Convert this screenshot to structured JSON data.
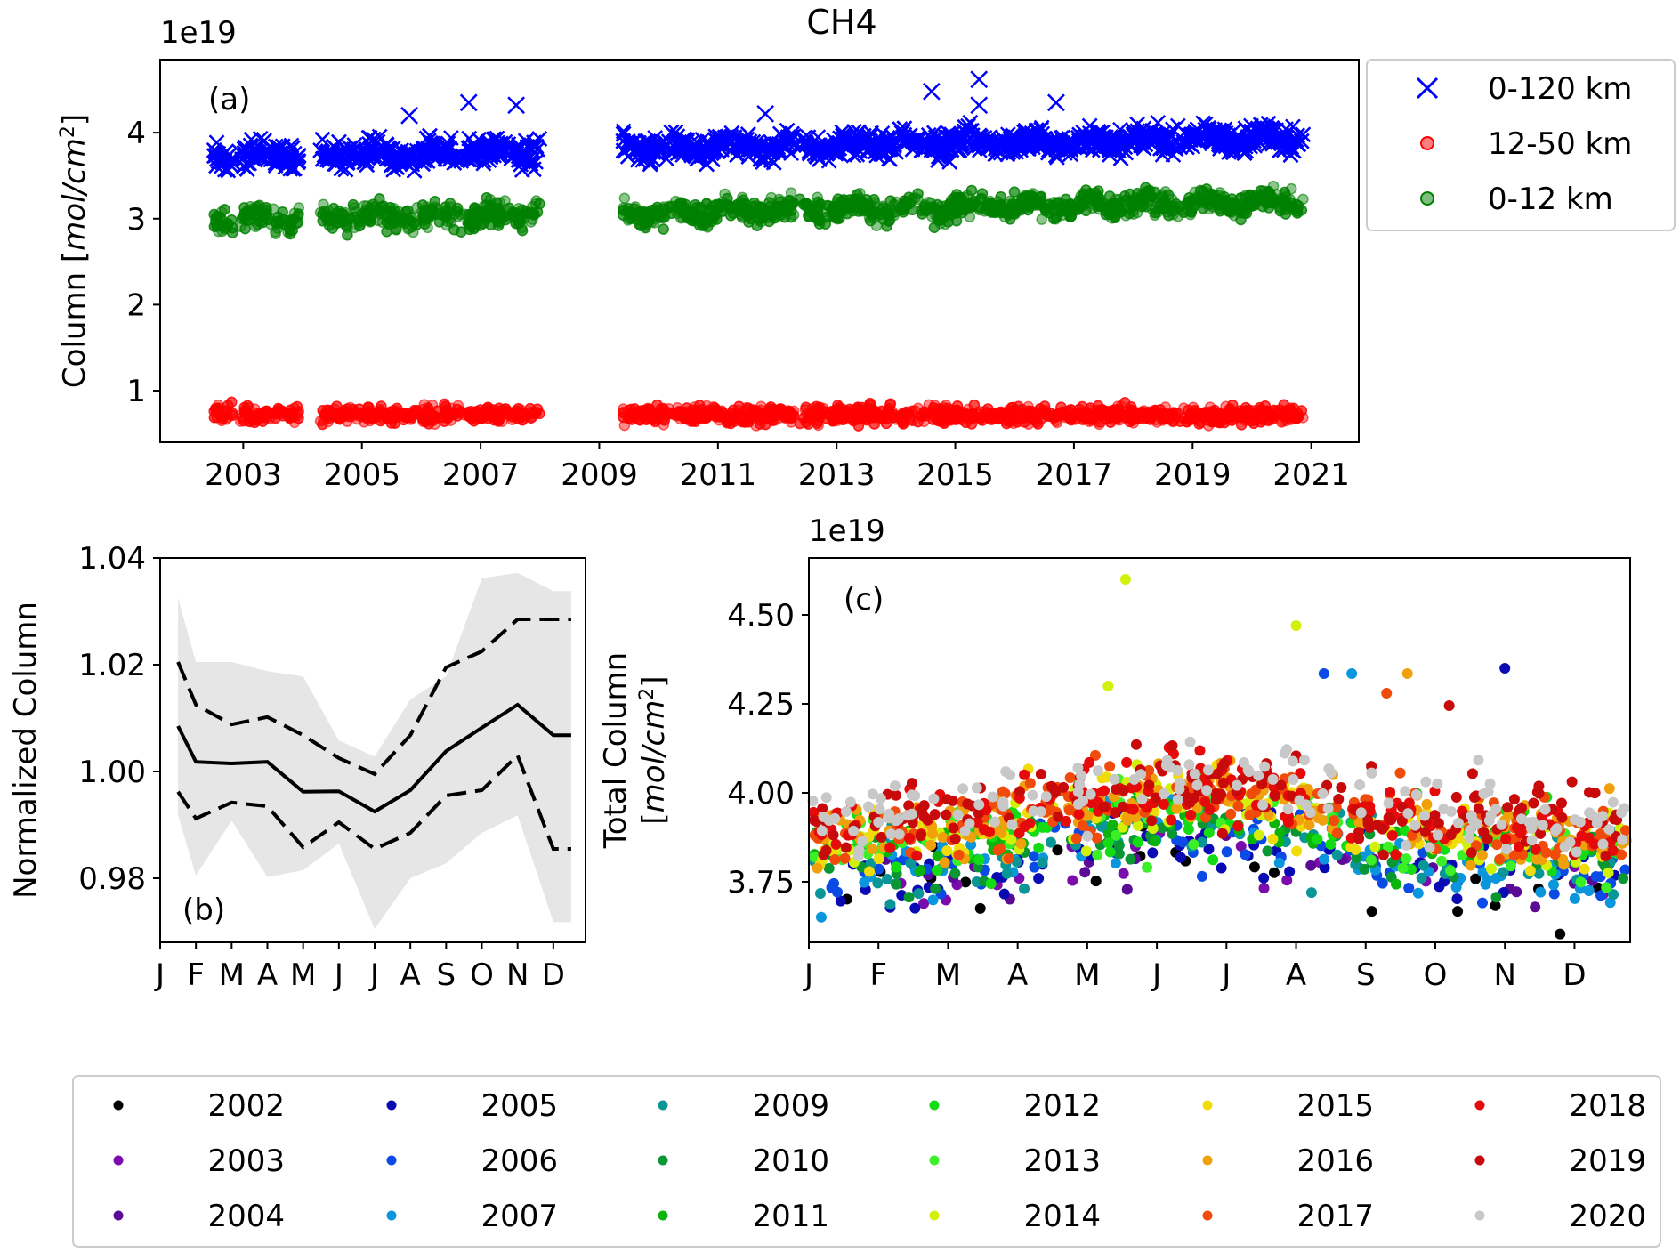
{
  "title": "CH4",
  "colors": {
    "total": "#0000ff",
    "strat": "#ff0000",
    "trop": "#008000",
    "band": "#e6e6e6",
    "line": "#000000",
    "legend_border": "#cccccc"
  },
  "panel_a": {
    "label": "(a)",
    "ylabel": "Column [mol/cm²]",
    "ylabel_main": "Column [",
    "ylabel_unit": "mol/cm",
    "ylabel_sup": "2",
    "ylabel_end": "]",
    "offset": "1e19",
    "xlim": [
      2001.6,
      2021.8
    ],
    "ylim": [
      0.4,
      4.85
    ],
    "xticks": [
      2003,
      2005,
      2007,
      2009,
      2011,
      2013,
      2015,
      2017,
      2019,
      2021
    ],
    "xtick_labels": [
      "2003",
      "2005",
      "2007",
      "2009",
      "2011",
      "2013",
      "2015",
      "2017",
      "2019",
      "2021"
    ],
    "yticks": [
      1,
      2,
      3,
      4
    ],
    "ytick_labels": [
      "1",
      "2",
      "3",
      "4"
    ],
    "data_gap": [
      2008.0,
      2009.4
    ],
    "data_range": [
      2002.5,
      2020.95
    ],
    "series_levels": {
      "0-120 km": 3.8,
      "12-50 km": 0.72,
      "0-12 km": 3.1
    },
    "legend": [
      {
        "label": "0-120 km",
        "marker": "x",
        "color": "#0000ff"
      },
      {
        "label": "12-50 km",
        "marker": "o",
        "color": "#ff0000"
      },
      {
        "label": "0-12 km",
        "marker": "o",
        "color": "#008000"
      }
    ]
  },
  "panel_b": {
    "label": "(b)",
    "ylabel": "Normalized Column",
    "xlim": [
      0,
      11.9
    ],
    "ylim": [
      0.968,
      1.04
    ],
    "yticks": [
      0.98,
      1.0,
      1.02,
      1.04
    ],
    "ytick_labels": [
      "0.98",
      "1.00",
      "1.02",
      "1.04"
    ],
    "xtick_labels": [
      "J",
      "F",
      "M",
      "A",
      "M",
      "J",
      "J",
      "A",
      "S",
      "O",
      "N",
      "D"
    ],
    "x": [
      0.5,
      1.0,
      2.0,
      3.0,
      4.0,
      5.0,
      6.0,
      7.0,
      8.0,
      9.0,
      10.0,
      11.0,
      11.5
    ],
    "mean": [
      1.0085,
      1.0018,
      1.0015,
      1.0018,
      0.9962,
      0.9963,
      0.9925,
      0.9965,
      1.0038,
      1.0082,
      1.0125,
      1.0068,
      1.0068
    ],
    "upper": [
      1.0205,
      1.0125,
      1.0088,
      1.0102,
      1.0068,
      1.0025,
      0.9995,
      1.0068,
      1.0195,
      1.0225,
      1.0285,
      1.0285,
      1.0285
    ],
    "lower": [
      0.9962,
      0.9912,
      0.9942,
      0.9935,
      0.9858,
      0.9905,
      0.9855,
      0.9885,
      0.9955,
      0.9965,
      1.003,
      0.9855,
      0.9855
    ],
    "band_upper": [
      1.0325,
      1.0205,
      1.0205,
      1.0188,
      1.0178,
      1.0058,
      1.0028,
      1.0135,
      1.0178,
      1.0362,
      1.0372,
      1.0338,
      1.0338
    ],
    "band_lower": [
      0.9918,
      0.9805,
      0.9908,
      0.9802,
      0.9815,
      0.9865,
      0.9705,
      0.98,
      0.9828,
      0.9885,
      0.9918,
      0.9718,
      0.9718
    ]
  },
  "panel_c": {
    "label": "(c)",
    "ylabel_line1": "Total Column",
    "ylabel_line2_open": "[",
    "ylabel_line2_unit": "mol/cm",
    "ylabel_line2_sup": "2",
    "ylabel_line2_close": "]",
    "offset": "1e19",
    "xlim": [
      0,
      11.8
    ],
    "ylim": [
      3.58,
      4.66
    ],
    "yticks": [
      3.75,
      4.0,
      4.25,
      4.5
    ],
    "ytick_labels": [
      "3.75",
      "4.00",
      "4.25",
      "4.50"
    ],
    "xtick_labels": [
      "J",
      "F",
      "M",
      "A",
      "M",
      "J",
      "J",
      "A",
      "S",
      "O",
      "N",
      "D"
    ],
    "outliers": [
      {
        "year": "2014",
        "month": 4.55,
        "value": 4.6
      },
      {
        "year": "2014",
        "month": 7.0,
        "value": 4.47
      },
      {
        "year": "2014",
        "month": 4.3,
        "value": 4.3
      },
      {
        "year": "2006",
        "month": 7.4,
        "value": 4.335
      },
      {
        "year": "2007",
        "month": 7.8,
        "value": 4.335
      },
      {
        "year": "2005",
        "month": 10.0,
        "value": 4.35
      },
      {
        "year": "2017",
        "month": 8.3,
        "value": 4.28
      },
      {
        "year": "2016",
        "month": 8.6,
        "value": 4.335
      },
      {
        "year": "2019",
        "month": 9.2,
        "value": 4.245
      }
    ]
  },
  "year_legend": [
    {
      "year": "2002",
      "color": "#000000"
    },
    {
      "year": "2003",
      "color": "#7a0cab"
    },
    {
      "year": "2004",
      "color": "#5a0a96"
    },
    {
      "year": "2005",
      "color": "#0a0ab4"
    },
    {
      "year": "2006",
      "color": "#0a4be6"
    },
    {
      "year": "2007",
      "color": "#0a96dc"
    },
    {
      "year": "2009",
      "color": "#0a9696"
    },
    {
      "year": "2010",
      "color": "#0a9632"
    },
    {
      "year": "2011",
      "color": "#0ab40a"
    },
    {
      "year": "2012",
      "color": "#14dc14"
    },
    {
      "year": "2013",
      "color": "#3cf028"
    },
    {
      "year": "2014",
      "color": "#d2f00a"
    },
    {
      "year": "2015",
      "color": "#f0dc0a"
    },
    {
      "year": "2016",
      "color": "#f0a00a"
    },
    {
      "year": "2017",
      "color": "#f04b0a"
    },
    {
      "year": "2018",
      "color": "#e60a0a"
    },
    {
      "year": "2019",
      "color": "#c80a0a"
    },
    {
      "year": "2020",
      "color": "#c8c8c8"
    }
  ],
  "chart_data": [
    {
      "type": "scatter",
      "title": "CH4",
      "panel": "(a)",
      "xlabel": "",
      "ylabel": "Column [mol/cm^2] (1e19)",
      "xlim": [
        2001.6,
        2021.8
      ],
      "ylim": [
        0.4,
        4.85
      ],
      "series": [
        {
          "name": "0-120 km",
          "approx_level": 3.8,
          "range": [
            3.5,
            4.6
          ]
        },
        {
          "name": "12-50 km",
          "approx_level": 0.72,
          "range": [
            0.38,
            1.05
          ]
        },
        {
          "name": "0-12 km",
          "approx_level": 3.1,
          "range": [
            2.7,
            3.6
          ]
        }
      ]
    },
    {
      "type": "line",
      "panel": "(b)",
      "xlabel": "",
      "ylabel": "Normalized Column",
      "categories": [
        "J",
        "F",
        "M",
        "A",
        "M",
        "J",
        "J",
        "A",
        "S",
        "O",
        "N",
        "D"
      ],
      "ylim": [
        0.968,
        1.04
      ]
    },
    {
      "type": "scatter",
      "panel": "(c)",
      "xlabel": "",
      "ylabel": "Total Column [mol/cm^2] (1e19)",
      "categories": [
        "J",
        "F",
        "M",
        "A",
        "M",
        "J",
        "J",
        "A",
        "S",
        "O",
        "N",
        "D"
      ],
      "ylim": [
        3.58,
        4.66
      ]
    }
  ]
}
